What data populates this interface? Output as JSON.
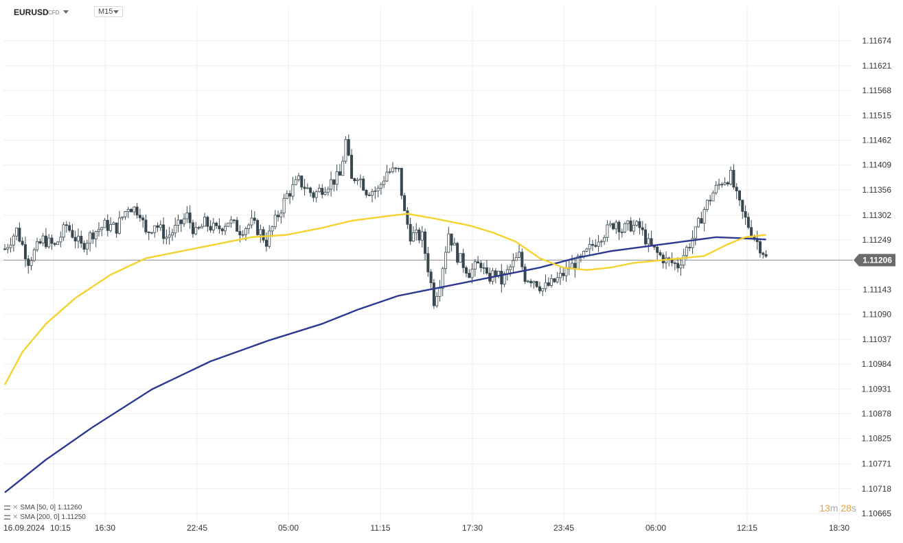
{
  "header": {
    "symbol": "EURUSD",
    "symbol_type": "CFD",
    "timeframe": "M15"
  },
  "indicators": [
    {
      "label": "SMA [50, 0]",
      "value": "1.11260",
      "color": "#f5d22e"
    },
    {
      "label": "SMA [200, 0]",
      "value": "1.11250",
      "color": "#2b3990"
    }
  ],
  "timer": {
    "minutes": "13",
    "m": "m",
    "seconds": "28",
    "s": "s"
  },
  "date_label": "16.09.2024",
  "chart_data": {
    "type": "candlestick",
    "y_ticks": [
      "1.11674",
      "1.11621",
      "1.11568",
      "1.11515",
      "1.11462",
      "1.11409",
      "1.11356",
      "1.11302",
      "1.11249",
      "1.11206",
      "1.11143",
      "1.11090",
      "1.11037",
      "1.10984",
      "1.10931",
      "1.10878",
      "1.10825",
      "1.10771",
      "1.10718",
      "1.10665"
    ],
    "x_ticks": [
      "10:15",
      "16:30",
      "22:45",
      "05:00",
      "11:15",
      "17:30",
      "23:45",
      "06:00",
      "12:15",
      "18:30"
    ],
    "ylim": [
      1.10649,
      1.11732
    ],
    "current_price": "1.11206",
    "grid": true,
    "price_path": [
      [
        0,
        1.1123
      ],
      [
        4,
        1.1127
      ],
      [
        8,
        1.11205
      ],
      [
        13,
        1.1125
      ],
      [
        17,
        1.11235
      ],
      [
        21,
        1.1128
      ],
      [
        26,
        1.11235
      ],
      [
        30,
        1.11265
      ],
      [
        34,
        1.1128
      ],
      [
        38,
        1.11275
      ],
      [
        42,
        1.11322
      ],
      [
        46,
        1.1131
      ],
      [
        48,
        1.1126
      ],
      [
        51,
        1.11285
      ],
      [
        55,
        1.11255
      ],
      [
        59,
        1.11278
      ],
      [
        62,
        1.113
      ],
      [
        65,
        1.11262
      ],
      [
        68,
        1.11285
      ],
      [
        72,
        1.1127
      ],
      [
        76,
        1.1129
      ],
      [
        80,
        1.1127
      ],
      [
        84,
        1.11285
      ],
      [
        87,
        1.11265
      ],
      [
        89,
        1.11245
      ],
      [
        91,
        1.11275
      ],
      [
        96,
        1.11345
      ],
      [
        100,
        1.11375
      ],
      [
        105,
        1.11345
      ],
      [
        109,
        1.11365
      ],
      [
        114,
        1.11385
      ],
      [
        116,
        1.1146
      ],
      [
        118,
        1.11375
      ],
      [
        120,
        1.1139
      ],
      [
        123,
        1.11355
      ],
      [
        127,
        1.11355
      ],
      [
        130,
        1.11395
      ],
      [
        134,
        1.11395
      ],
      [
        136,
        1.11305
      ],
      [
        138,
        1.1126
      ],
      [
        142,
        1.11255
      ],
      [
        144,
        1.1119
      ],
      [
        146,
        1.1112
      ],
      [
        148,
        1.1116
      ],
      [
        151,
        1.11265
      ],
      [
        154,
        1.11215
      ],
      [
        158,
        1.1118
      ],
      [
        162,
        1.112
      ],
      [
        164,
        1.11165
      ],
      [
        167,
        1.1118
      ],
      [
        169,
        1.1116
      ],
      [
        172,
        1.1119
      ],
      [
        175,
        1.11215
      ],
      [
        177,
        1.1117
      ],
      [
        180,
        1.11165
      ],
      [
        183,
        1.11145
      ],
      [
        186,
        1.11155
      ],
      [
        189,
        1.1117
      ],
      [
        192,
        1.1119
      ],
      [
        196,
        1.11205
      ],
      [
        199,
        1.1123
      ],
      [
        202,
        1.11255
      ],
      [
        205,
        1.1127
      ],
      [
        208,
        1.1129
      ],
      [
        210,
        1.1127
      ],
      [
        213,
        1.1128
      ],
      [
        216,
        1.11275
      ],
      [
        219,
        1.1124
      ],
      [
        222,
        1.1122
      ],
      [
        225,
        1.11205
      ],
      [
        229,
        1.11195
      ],
      [
        232,
        1.1123
      ],
      [
        235,
        1.11265
      ],
      [
        238,
        1.11315
      ],
      [
        241,
        1.1135
      ],
      [
        244,
        1.11375
      ],
      [
        247,
        1.11385
      ],
      [
        249,
        1.1134
      ],
      [
        251,
        1.11305
      ],
      [
        253,
        1.1128
      ],
      [
        256,
        1.11245
      ],
      [
        258,
        1.11225
      ],
      [
        259,
        1.1121
      ]
    ],
    "sma50": [
      [
        0,
        1.1094
      ],
      [
        6,
        1.1101
      ],
      [
        14,
        1.1107
      ],
      [
        24,
        1.11125
      ],
      [
        36,
        1.11175
      ],
      [
        48,
        1.1121
      ],
      [
        60,
        1.11225
      ],
      [
        72,
        1.1124
      ],
      [
        84,
        1.11255
      ],
      [
        96,
        1.1126
      ],
      [
        108,
        1.11275
      ],
      [
        118,
        1.1129
      ],
      [
        130,
        1.113
      ],
      [
        137,
        1.11305
      ],
      [
        146,
        1.11295
      ],
      [
        158,
        1.1128
      ],
      [
        166,
        1.11265
      ],
      [
        174,
        1.11245
      ],
      [
        182,
        1.1121
      ],
      [
        190,
        1.1119
      ],
      [
        198,
        1.11185
      ],
      [
        206,
        1.1119
      ],
      [
        214,
        1.112
      ],
      [
        222,
        1.11205
      ],
      [
        230,
        1.1121
      ],
      [
        238,
        1.11215
      ],
      [
        246,
        1.1124
      ],
      [
        252,
        1.11255
      ],
      [
        259,
        1.1126
      ]
    ],
    "sma200": [
      [
        0,
        1.1071
      ],
      [
        14,
        1.1078
      ],
      [
        30,
        1.1085
      ],
      [
        50,
        1.1093
      ],
      [
        70,
        1.1099
      ],
      [
        90,
        1.11035
      ],
      [
        108,
        1.1107
      ],
      [
        120,
        1.111
      ],
      [
        134,
        1.1113
      ],
      [
        146,
        1.11145
      ],
      [
        158,
        1.1116
      ],
      [
        170,
        1.11175
      ],
      [
        182,
        1.1119
      ],
      [
        194,
        1.1121
      ],
      [
        206,
        1.11225
      ],
      [
        218,
        1.11235
      ],
      [
        230,
        1.11245
      ],
      [
        242,
        1.11255
      ],
      [
        250,
        1.11253
      ],
      [
        259,
        1.1125
      ]
    ]
  }
}
